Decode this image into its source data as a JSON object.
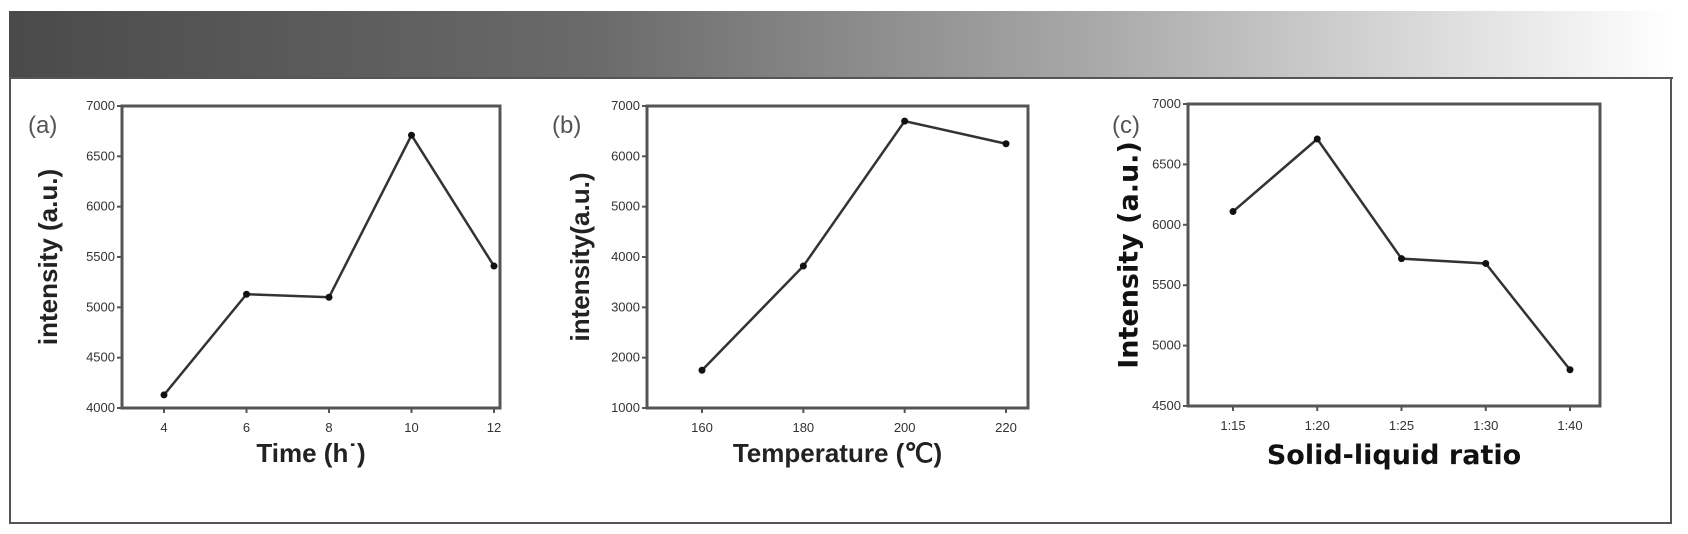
{
  "colors": {
    "line": "#333333",
    "frame": "#555555",
    "header_gradient_start": "#4a4a4a",
    "header_gradient_end": "#ffffff"
  },
  "chart_data": [
    {
      "type": "line",
      "panel_label": "(a)",
      "xlabel": "Time (h˙)",
      "ylabel": "intensity (a.u.)",
      "x": [
        4,
        6,
        8,
        10,
        12
      ],
      "x_ticks": [
        "4",
        "6",
        "8",
        "10",
        "12"
      ],
      "values": [
        4130,
        5130,
        5100,
        6710,
        5410
      ],
      "ylim": [
        4000,
        7000
      ],
      "y_ticks": [
        "4000",
        "4500",
        "5000",
        "5500",
        "6000",
        "6500",
        "7000"
      ],
      "grid": false
    },
    {
      "type": "line",
      "panel_label": "(b)",
      "xlabel": "Temperature (℃)",
      "ylabel": "intensity(a.u.)",
      "x": [
        160,
        180,
        200,
        220
      ],
      "x_ticks": [
        "160",
        "180",
        "200",
        "220"
      ],
      "values": [
        1750,
        3820,
        6700,
        6250
      ],
      "ylim": [
        1000,
        7000
      ],
      "y_ticks": [
        "1000",
        "2000",
        "3000",
        "4000",
        "5000",
        "6000",
        "7000"
      ],
      "grid": false
    },
    {
      "type": "line",
      "panel_label": "(c)",
      "xlabel": "Solid-liquid ratio",
      "ylabel": "Intensity (a.u.)",
      "categories": [
        "1:15",
        "1:20",
        "1:25",
        "1:30",
        "1:40"
      ],
      "x_ticks": [
        "1:15",
        "1:20",
        "1:25",
        "1:30",
        "1:40"
      ],
      "values": [
        6110,
        6710,
        5720,
        5680,
        4800
      ],
      "ylim": [
        4500,
        7000
      ],
      "y_ticks": [
        "4500",
        "5000",
        "5500",
        "6000",
        "6500",
        "7000"
      ],
      "grid": false
    }
  ]
}
